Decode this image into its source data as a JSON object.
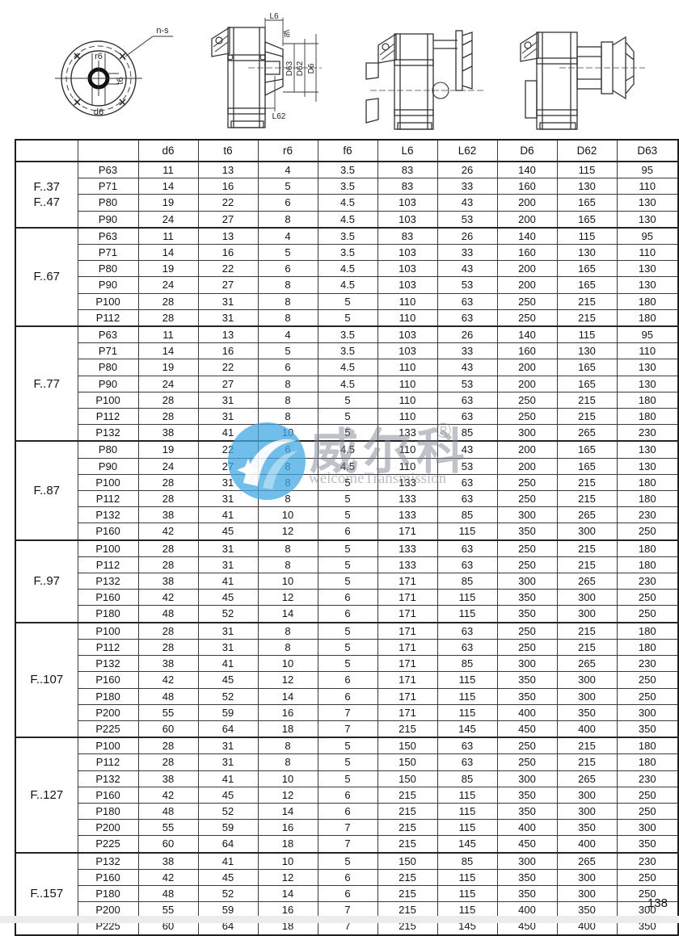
{
  "page": {
    "number": "138"
  },
  "drawings": {
    "flange_front_view": {
      "labels": {
        "bolt_pattern": "n-s",
        "fillet": "r6",
        "keyway": "t6",
        "bore": "d6"
      }
    },
    "dimensioned_side_view": {
      "labels": {
        "flange_length": "L6",
        "chamfer": "f6",
        "spigot_dia": "D63",
        "bolt_circle_dia": "D62",
        "flange_dia": "D6",
        "hub_length": "L62"
      }
    }
  },
  "watermark": {
    "cjk_text": "威尔科",
    "registered_mark": "®",
    "latin_text": "welcomeTransmission",
    "accent_color": "#42a8e2",
    "text_color": "#7d8490"
  },
  "table": {
    "headers": [
      "",
      "",
      "d6",
      "t6",
      "r6",
      "f6",
      "L6",
      "L62",
      "D6",
      "D62",
      "D63"
    ],
    "groups": [
      {
        "label_lines": [
          "F..37",
          "F..47"
        ],
        "rows": [
          [
            "P63",
            "11",
            "13",
            "4",
            "3.5",
            "83",
            "26",
            "140",
            "115",
            "95"
          ],
          [
            "P71",
            "14",
            "16",
            "5",
            "3.5",
            "83",
            "33",
            "160",
            "130",
            "110"
          ],
          [
            "P80",
            "19",
            "22",
            "6",
            "4.5",
            "103",
            "43",
            "200",
            "165",
            "130"
          ],
          [
            "P90",
            "24",
            "27",
            "8",
            "4.5",
            "103",
            "53",
            "200",
            "165",
            "130"
          ]
        ]
      },
      {
        "label_lines": [
          "F..67"
        ],
        "rows": [
          [
            "P63",
            "11",
            "13",
            "4",
            "3.5",
            "83",
            "26",
            "140",
            "115",
            "95"
          ],
          [
            "P71",
            "14",
            "16",
            "5",
            "3.5",
            "103",
            "33",
            "160",
            "130",
            "110"
          ],
          [
            "P80",
            "19",
            "22",
            "6",
            "4.5",
            "103",
            "43",
            "200",
            "165",
            "130"
          ],
          [
            "P90",
            "24",
            "27",
            "8",
            "4.5",
            "103",
            "53",
            "200",
            "165",
            "130"
          ],
          [
            "P100",
            "28",
            "31",
            "8",
            "5",
            "110",
            "63",
            "250",
            "215",
            "180"
          ],
          [
            "P112",
            "28",
            "31",
            "8",
            "5",
            "110",
            "63",
            "250",
            "215",
            "180"
          ]
        ]
      },
      {
        "label_lines": [
          "F..77"
        ],
        "rows": [
          [
            "P63",
            "11",
            "13",
            "4",
            "3.5",
            "103",
            "26",
            "140",
            "115",
            "95"
          ],
          [
            "P71",
            "14",
            "16",
            "5",
            "3.5",
            "103",
            "33",
            "160",
            "130",
            "110"
          ],
          [
            "P80",
            "19",
            "22",
            "6",
            "4.5",
            "110",
            "43",
            "200",
            "165",
            "130"
          ],
          [
            "P90",
            "24",
            "27",
            "8",
            "4.5",
            "110",
            "53",
            "200",
            "165",
            "130"
          ],
          [
            "P100",
            "28",
            "31",
            "8",
            "5",
            "110",
            "63",
            "250",
            "215",
            "180"
          ],
          [
            "P112",
            "28",
            "31",
            "8",
            "5",
            "110",
            "63",
            "250",
            "215",
            "180"
          ],
          [
            "P132",
            "38",
            "41",
            "10",
            "5",
            "133",
            "85",
            "300",
            "265",
            "230"
          ]
        ]
      },
      {
        "label_lines": [
          "F..87"
        ],
        "rows": [
          [
            "P80",
            "19",
            "22",
            "6",
            "4.5",
            "110",
            "43",
            "200",
            "165",
            "130"
          ],
          [
            "P90",
            "24",
            "27",
            "8",
            "4.5",
            "110",
            "53",
            "200",
            "165",
            "130"
          ],
          [
            "P100",
            "28",
            "31",
            "8",
            "5",
            "133",
            "63",
            "250",
            "215",
            "180"
          ],
          [
            "P112",
            "28",
            "31",
            "8",
            "5",
            "133",
            "63",
            "250",
            "215",
            "180"
          ],
          [
            "P132",
            "38",
            "41",
            "10",
            "5",
            "133",
            "85",
            "300",
            "265",
            "230"
          ],
          [
            "P160",
            "42",
            "45",
            "12",
            "6",
            "171",
            "115",
            "350",
            "300",
            "250"
          ]
        ]
      },
      {
        "label_lines": [
          "F..97"
        ],
        "rows": [
          [
            "P100",
            "28",
            "31",
            "8",
            "5",
            "133",
            "63",
            "250",
            "215",
            "180"
          ],
          [
            "P112",
            "28",
            "31",
            "8",
            "5",
            "133",
            "63",
            "250",
            "215",
            "180"
          ],
          [
            "P132",
            "38",
            "41",
            "10",
            "5",
            "171",
            "85",
            "300",
            "265",
            "230"
          ],
          [
            "P160",
            "42",
            "45",
            "12",
            "6",
            "171",
            "115",
            "350",
            "300",
            "250"
          ],
          [
            "P180",
            "48",
            "52",
            "14",
            "6",
            "171",
            "115",
            "350",
            "300",
            "250"
          ]
        ]
      },
      {
        "label_lines": [
          "F..107"
        ],
        "rows": [
          [
            "P100",
            "28",
            "31",
            "8",
            "5",
            "171",
            "63",
            "250",
            "215",
            "180"
          ],
          [
            "P112",
            "28",
            "31",
            "8",
            "5",
            "171",
            "63",
            "250",
            "215",
            "180"
          ],
          [
            "P132",
            "38",
            "41",
            "10",
            "5",
            "171",
            "85",
            "300",
            "265",
            "230"
          ],
          [
            "P160",
            "42",
            "45",
            "12",
            "6",
            "171",
            "115",
            "350",
            "300",
            "250"
          ],
          [
            "P180",
            "48",
            "52",
            "14",
            "6",
            "171",
            "115",
            "350",
            "300",
            "250"
          ],
          [
            "P200",
            "55",
            "59",
            "16",
            "7",
            "171",
            "115",
            "400",
            "350",
            "300"
          ],
          [
            "P225",
            "60",
            "64",
            "18",
            "7",
            "215",
            "145",
            "450",
            "400",
            "350"
          ]
        ]
      },
      {
        "label_lines": [
          "F..127"
        ],
        "rows": [
          [
            "P100",
            "28",
            "31",
            "8",
            "5",
            "150",
            "63",
            "250",
            "215",
            "180"
          ],
          [
            "P112",
            "28",
            "31",
            "8",
            "5",
            "150",
            "63",
            "250",
            "215",
            "180"
          ],
          [
            "P132",
            "38",
            "41",
            "10",
            "5",
            "150",
            "85",
            "300",
            "265",
            "230"
          ],
          [
            "P160",
            "42",
            "45",
            "12",
            "6",
            "215",
            "115",
            "350",
            "300",
            "250"
          ],
          [
            "P180",
            "48",
            "52",
            "14",
            "6",
            "215",
            "115",
            "350",
            "300",
            "250"
          ],
          [
            "P200",
            "55",
            "59",
            "16",
            "7",
            "215",
            "115",
            "400",
            "350",
            "300"
          ],
          [
            "P225",
            "60",
            "64",
            "18",
            "7",
            "215",
            "145",
            "450",
            "400",
            "350"
          ]
        ]
      },
      {
        "label_lines": [
          "F..157"
        ],
        "rows": [
          [
            "P132",
            "38",
            "41",
            "10",
            "5",
            "150",
            "85",
            "300",
            "265",
            "230"
          ],
          [
            "P160",
            "42",
            "45",
            "12",
            "6",
            "215",
            "115",
            "350",
            "300",
            "250"
          ],
          [
            "P180",
            "48",
            "52",
            "14",
            "6",
            "215",
            "115",
            "350",
            "300",
            "250"
          ],
          [
            "P200",
            "55",
            "59",
            "16",
            "7",
            "215",
            "115",
            "400",
            "350",
            "300"
          ],
          [
            "P225",
            "60",
            "64",
            "18",
            "7",
            "215",
            "145",
            "450",
            "400",
            "350"
          ]
        ]
      }
    ]
  }
}
